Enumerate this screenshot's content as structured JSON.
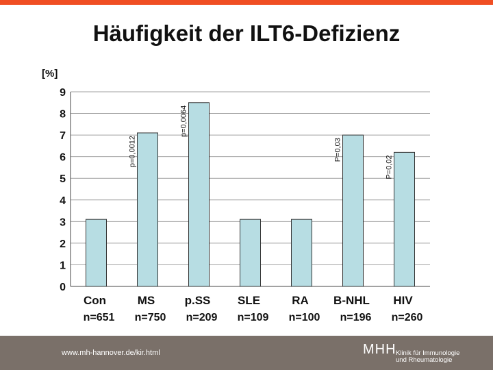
{
  "slide": {
    "title": "Häufigkeit der ILT6-Defizienz",
    "footer_url": "www.mh-hannover.de/kir.html",
    "logo_mark": "MHH",
    "logo_line1": "Klinik für Immunologie",
    "logo_line2": "und Rheumatologie",
    "accent_color": "#f04e23",
    "footer_color": "#7a7069",
    "bar_color": "#b7dde3"
  },
  "chart_data": {
    "type": "bar",
    "title": "Häufigkeit der ILT6-Defizienz",
    "ylabel": "[%]",
    "xlabel": "",
    "ylim": [
      0,
      9
    ],
    "yticks": [
      0,
      1,
      2,
      3,
      4,
      5,
      6,
      7,
      8,
      9
    ],
    "grid": true,
    "categories": [
      "Con",
      "MS",
      "p.SS",
      "SLE",
      "RA",
      "B-NHL",
      "HIV"
    ],
    "sample_sizes": [
      "n=651",
      "n=750",
      "n=209",
      "n=109",
      "n=100",
      "n=196",
      "n=260"
    ],
    "values": [
      3.1,
      7.1,
      8.5,
      3.1,
      3.1,
      7.0,
      6.2
    ],
    "annotations": [
      "",
      "p=0,0012",
      "p=0,0064",
      "",
      "",
      "P=0,03",
      "P=0,02"
    ]
  }
}
